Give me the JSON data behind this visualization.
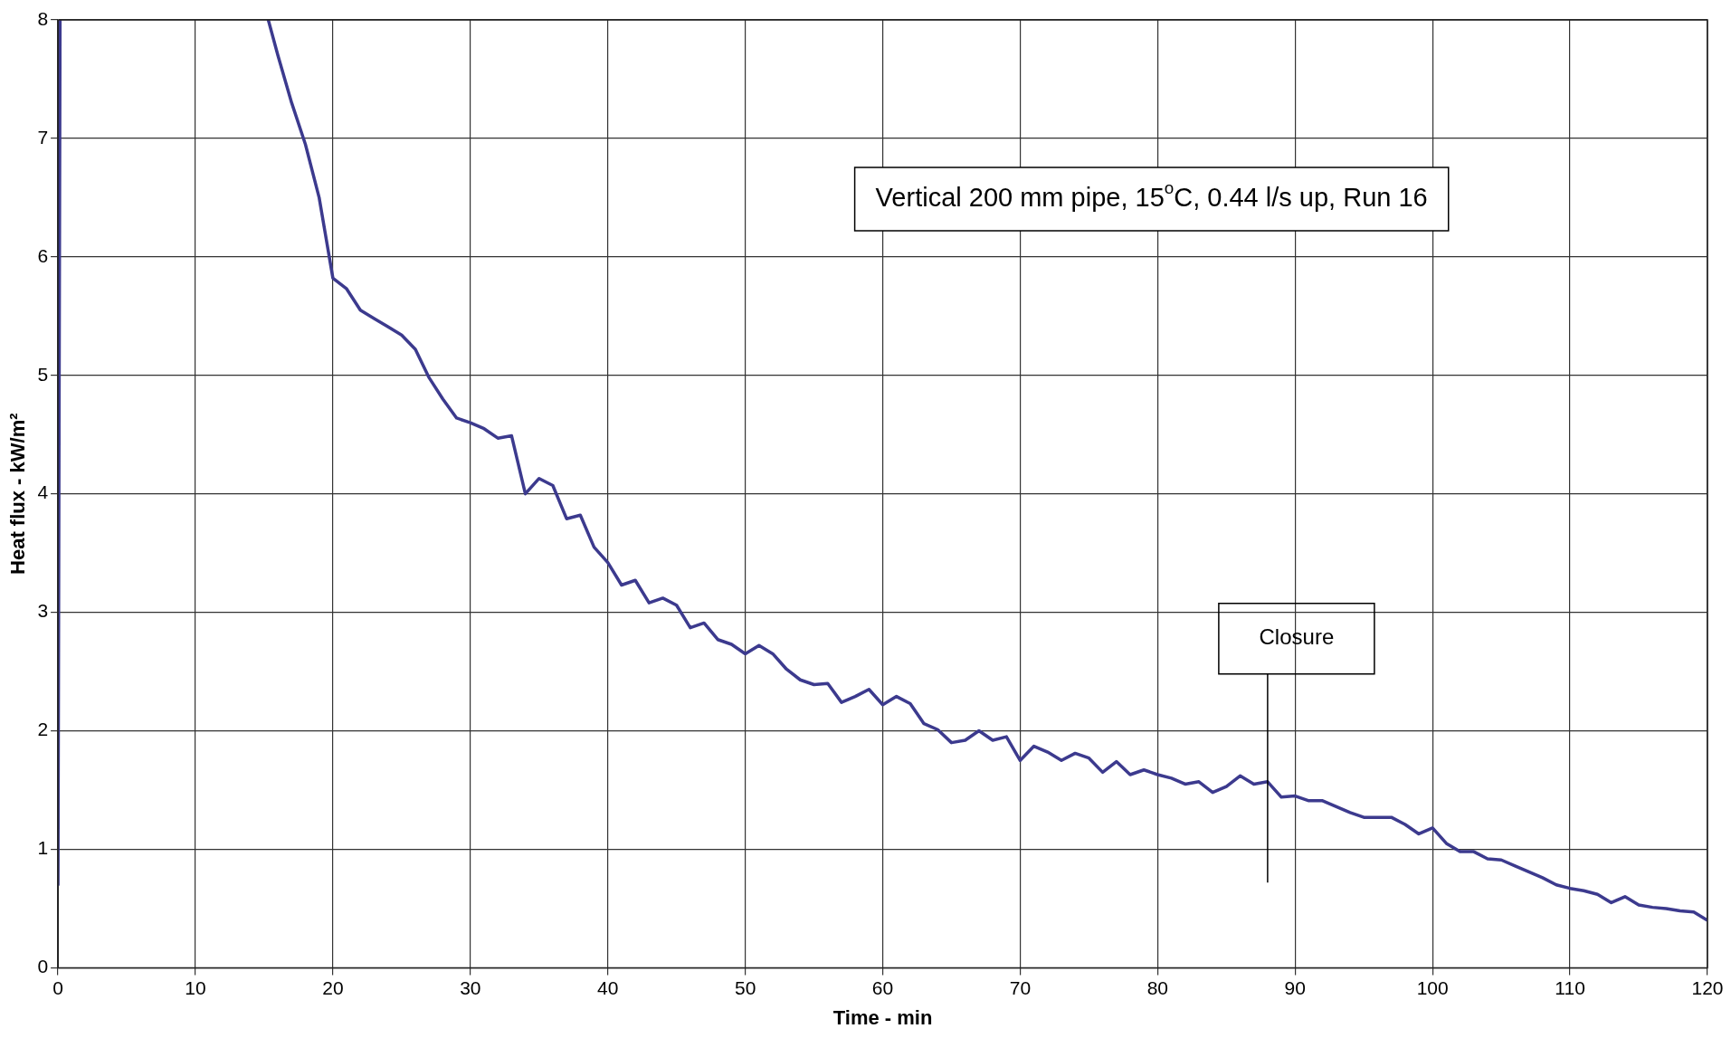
{
  "chart_data": {
    "type": "line",
    "xlabel": "Time - min",
    "ylabel": "Heat flux - kW/m²",
    "annotations": [
      "Vertical 200 mm pipe, 15$^{o}$C, 0.44 l/s up, Run 16"
    ],
    "ref_lines": [
      {
        "axis": "x",
        "value": 88,
        "label": "Closure",
        "color": "#000000"
      }
    ],
    "xlim": [
      0,
      120
    ],
    "xticks": [
      0,
      10,
      20,
      30,
      40,
      50,
      60,
      70,
      80,
      90,
      100,
      110,
      120
    ],
    "ylim": [
      0,
      8
    ],
    "yticks": [
      0,
      1,
      2,
      3,
      4,
      5,
      6,
      7,
      8
    ],
    "grid": true,
    "legend": false,
    "marker": "none",
    "line_style": "solid",
    "series": [
      {
        "color": "#3c3a8e",
        "x": [
          0,
          0.15,
          1,
          15.3,
          16,
          17,
          18,
          19,
          20,
          21,
          22,
          23,
          24,
          25,
          26,
          27,
          28,
          29,
          30,
          31,
          32,
          33,
          34,
          35,
          36,
          37,
          38,
          39,
          40,
          41,
          42,
          43,
          44,
          45,
          46,
          47,
          48,
          49,
          50,
          51,
          52,
          53,
          54,
          55,
          56,
          57,
          58,
          59,
          60,
          61,
          62,
          63,
          64,
          65,
          66,
          67,
          68,
          69,
          70,
          71,
          72,
          73,
          74,
          75,
          76,
          77,
          78,
          79,
          80,
          81,
          82,
          83,
          84,
          85,
          86,
          87,
          88,
          89,
          90,
          91,
          92,
          93,
          94,
          95,
          96,
          97,
          98,
          99,
          100,
          101,
          102,
          103,
          104,
          105,
          106,
          107,
          108,
          109,
          110,
          111,
          112,
          113,
          114,
          115,
          116,
          117,
          118,
          119,
          120
        ],
        "values": [
          0.7,
          8,
          null,
          8,
          7.7,
          7.3,
          6.95,
          6.5,
          5.82,
          5.73,
          5.55,
          5.48,
          5.41,
          5.34,
          5.22,
          4.98,
          4.8,
          4.64,
          4.6,
          4.55,
          4.47,
          4.49,
          4.0,
          4.13,
          4.07,
          3.79,
          3.82,
          3.55,
          3.42,
          3.23,
          3.27,
          3.08,
          3.12,
          3.06,
          2.87,
          2.91,
          2.77,
          2.73,
          2.65,
          2.72,
          2.65,
          2.52,
          2.43,
          2.39,
          2.4,
          2.24,
          2.29,
          2.35,
          2.22,
          2.29,
          2.23,
          2.06,
          2.01,
          1.9,
          1.92,
          2.0,
          1.92,
          1.95,
          1.75,
          1.87,
          1.82,
          1.75,
          1.81,
          1.77,
          1.65,
          1.74,
          1.63,
          1.67,
          1.63,
          1.6,
          1.55,
          1.57,
          1.48,
          1.53,
          1.62,
          1.55,
          1.57,
          1.44,
          1.45,
          1.41,
          1.41,
          1.36,
          1.31,
          1.27,
          1.27,
          1.27,
          1.21,
          1.13,
          1.18,
          1.05,
          0.98,
          0.98,
          0.92,
          0.91,
          0.86,
          0.81,
          0.76,
          0.7,
          0.67,
          0.65,
          0.62,
          0.55,
          0.6,
          0.53,
          0.51,
          0.5,
          0.48,
          0.47,
          0.4
        ]
      }
    ]
  }
}
